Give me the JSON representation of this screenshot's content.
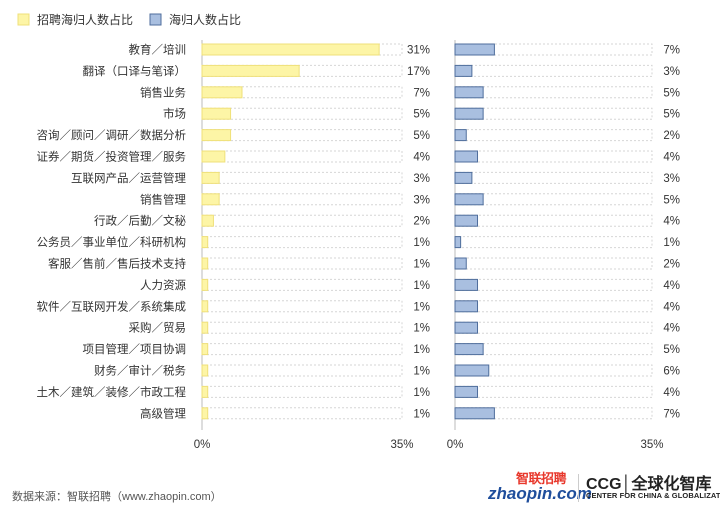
{
  "chart_data": {
    "type": "bar",
    "orientation": "horizontal",
    "layout": "two-panel",
    "categories": [
      "教育／培训",
      "翻译（口译与笔译）",
      "销售业务",
      "市场",
      "咨询／顾问／调研／数据分析",
      "证券／期货／投资管理／服务",
      "互联网产品／运营管理",
      "销售管理",
      "行政／后勤／文秘",
      "公务员／事业单位／科研机构",
      "客服／售前／售后技术支持",
      "人力资源",
      "软件／互联网开发／系统集成",
      "采购／贸易",
      "项目管理／项目协调",
      "财务／审计／税务",
      "土木／建筑／装修／市政工程",
      "高级管理"
    ],
    "series": [
      {
        "name": "招聘海归人数占比",
        "color": "#fdf5a6",
        "border": "#efe07a",
        "values": [
          31,
          17,
          7,
          5,
          5,
          4,
          3,
          3,
          2,
          1,
          1,
          1,
          1,
          1,
          1,
          1,
          1,
          1
        ],
        "labels": [
          "31%",
          "17%",
          "7%",
          "5%",
          "5%",
          "4%",
          "3%",
          "3%",
          "2%",
          "1%",
          "1%",
          "1%",
          "1%",
          "1%",
          "1%",
          "1%",
          "1%",
          "1%"
        ],
        "axis_min_label": "0%",
        "axis_max_label": "35%",
        "xlim": [
          0,
          35
        ]
      },
      {
        "name": "海归人数占比",
        "color": "#a9bfe0",
        "border": "#4f6e9c",
        "values": [
          7,
          3,
          5,
          5,
          2,
          4,
          3,
          5,
          4,
          1,
          2,
          4,
          4,
          4,
          5,
          6,
          4,
          7
        ],
        "labels": [
          "7%",
          "3%",
          "5%",
          "5%",
          "2%",
          "4%",
          "3%",
          "5%",
          "4%",
          "1%",
          "2%",
          "4%",
          "4%",
          "4%",
          "5%",
          "6%",
          "4%",
          "7%"
        ],
        "axis_min_label": "0%",
        "axis_max_label": "35%",
        "xlim": [
          0,
          35
        ]
      }
    ],
    "legend_position": "top-left",
    "grid": false
  },
  "footer": {
    "source": "数据来源：智联招聘（www.zhaopin.com）",
    "logo_zhaopin_cn": "智联招聘",
    "logo_zhaopin_en": "zhaopin.com",
    "logo_ccg_main": "CCG│全球化智库",
    "logo_ccg_sub": "CENTER FOR CHINA & GLOBALIZATION"
  }
}
